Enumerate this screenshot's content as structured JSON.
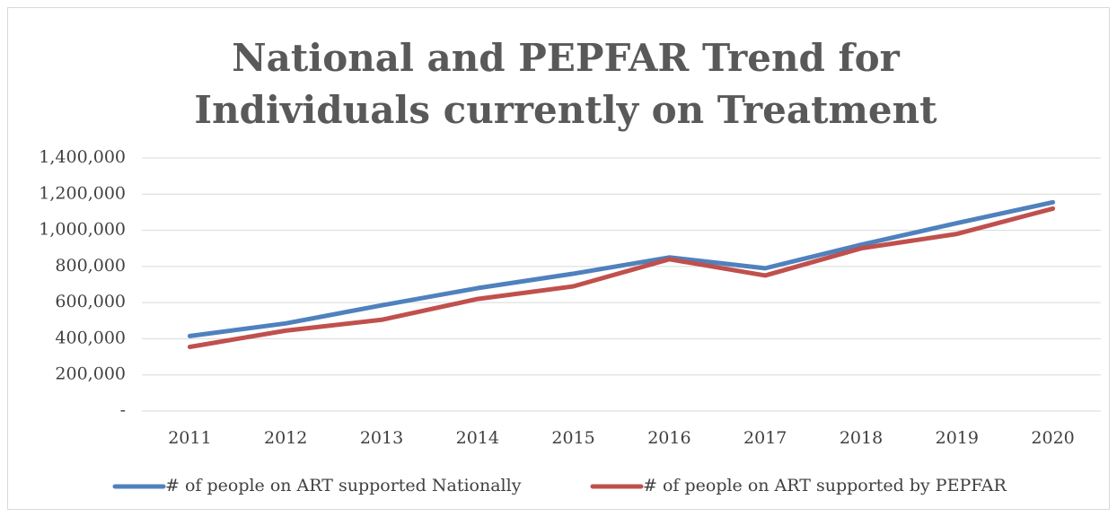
{
  "chart_data": {
    "type": "line",
    "title": "National and PEPFAR Trend for Individuals currently on Treatment",
    "categories": [
      "2011",
      "2012",
      "2013",
      "2014",
      "2015",
      "2016",
      "2017",
      "2018",
      "2019",
      "2020"
    ],
    "series": [
      {
        "name": "# of people on ART supported Nationally",
        "color": "#4f81bd",
        "values": [
          415000,
          485000,
          585000,
          680000,
          760000,
          850000,
          790000,
          920000,
          1040000,
          1155000
        ]
      },
      {
        "name": "# of people on ART supported by PEPFAR",
        "color": "#c0504d",
        "values": [
          355000,
          445000,
          505000,
          620000,
          690000,
          840000,
          750000,
          900000,
          980000,
          1120000
        ]
      }
    ],
    "ylim": [
      0,
      1400000
    ],
    "yticks": [
      {
        "value": 0,
        "label": "-"
      },
      {
        "value": 200000,
        "label": "200,000"
      },
      {
        "value": 400000,
        "label": "400,000"
      },
      {
        "value": 600000,
        "label": "600,000"
      },
      {
        "value": 800000,
        "label": "800,000"
      },
      {
        "value": 1000000,
        "label": "1,000,000"
      },
      {
        "value": 1200000,
        "label": "1,200,000"
      },
      {
        "value": 1400000,
        "label": "1,400,000"
      }
    ],
    "grid": true,
    "legend": "bottom"
  }
}
